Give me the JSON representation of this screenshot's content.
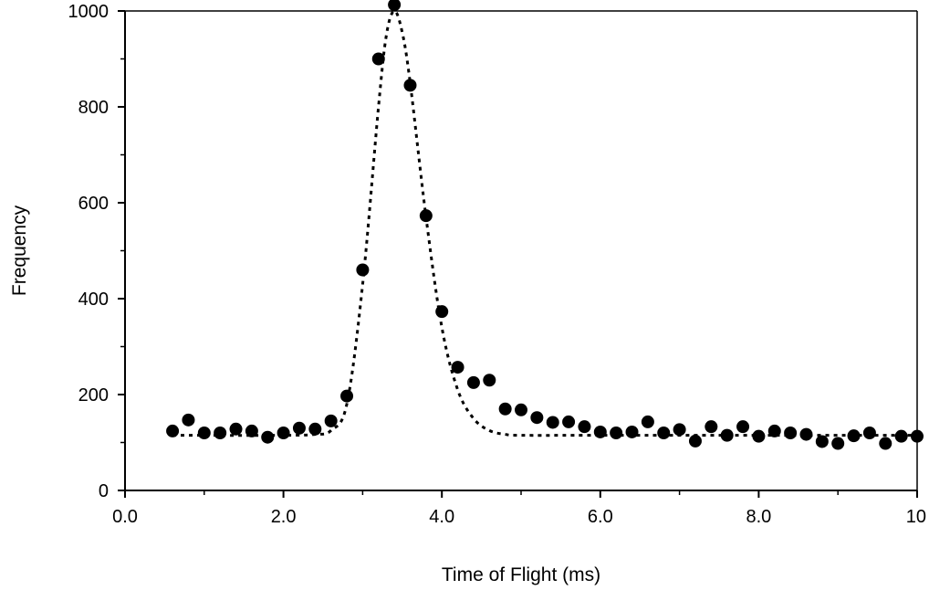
{
  "chart_data": {
    "type": "scatter",
    "title": "",
    "xlabel": "Time of Flight (ms)",
    "ylabel": "Frequency",
    "xlim": [
      0,
      10
    ],
    "ylim": [
      0,
      1000
    ],
    "x_ticks": [
      0,
      2,
      4,
      6,
      8,
      10
    ],
    "x_tick_labels": [
      "0.0",
      "2.0",
      "4.0",
      "6.0",
      "8.0",
      "10"
    ],
    "y_ticks": [
      0,
      200,
      400,
      600,
      800,
      1000
    ],
    "y_tick_labels": [
      "0",
      "200",
      "400",
      "600",
      "800",
      "1000"
    ],
    "grid": false,
    "legend": "none",
    "colors": {
      "points": "#000000",
      "fit_line": "#000000",
      "axes": "#000000",
      "background": "#ffffff"
    },
    "series": [
      {
        "kind": "points",
        "x": [
          0.6,
          0.8,
          1.0,
          1.2,
          1.4,
          1.6,
          1.8,
          2.0,
          2.2,
          2.4,
          2.6,
          2.8,
          3.0,
          3.2,
          3.4,
          3.6,
          3.8,
          4.0,
          4.2,
          4.4,
          4.6,
          4.8,
          5.0,
          5.2,
          5.4,
          5.6,
          5.8,
          6.0,
          6.2,
          6.4,
          6.6,
          6.8,
          7.0,
          7.2,
          7.4,
          7.6,
          7.8,
          8.0,
          8.2,
          8.4,
          8.6,
          8.8,
          9.0,
          9.2,
          9.4,
          9.6,
          9.8,
          10.0
        ],
        "y": [
          124,
          147,
          120,
          120,
          128,
          124,
          111,
          120,
          130,
          128,
          145,
          197,
          460,
          900,
          1013,
          845,
          573,
          373,
          257,
          225,
          230,
          170,
          168,
          152,
          142,
          143,
          133,
          122,
          120,
          122,
          143,
          120,
          127,
          103,
          133,
          115,
          133,
          113,
          124,
          120,
          117,
          102,
          98,
          114,
          120,
          98,
          113,
          113
        ]
      },
      {
        "kind": "fit",
        "style": "dotted",
        "x": [
          0.6,
          2.0,
          2.4,
          2.6,
          2.8,
          3.0,
          3.2,
          3.3,
          3.4,
          3.5,
          3.6,
          3.8,
          4.0,
          4.2,
          4.4,
          4.6,
          4.8,
          5.0,
          6.0,
          8.0,
          10.0
        ],
        "y": [
          115,
          115,
          117,
          125,
          180,
          430,
          800,
          950,
          1000,
          955,
          850,
          570,
          340,
          210,
          150,
          125,
          117,
          115,
          115,
          115,
          115
        ]
      }
    ]
  }
}
